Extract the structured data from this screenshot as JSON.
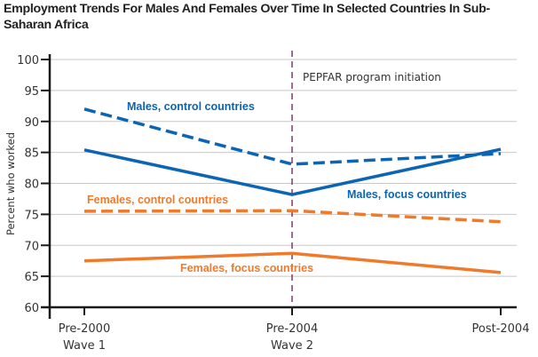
{
  "chart_data": {
    "type": "line",
    "title": "Employment Trends For Males And Females Over Time In Selected Countries In Sub-Saharan Africa",
    "xlabel": "",
    "ylabel": "Percent who worked",
    "ylim": [
      60,
      100
    ],
    "yticks": [
      60,
      65,
      70,
      75,
      80,
      85,
      90,
      95,
      100
    ],
    "ytick_labels": [
      "60",
      "65",
      "70",
      "75",
      "80",
      "85",
      "90",
      "95",
      "100"
    ],
    "grid": true,
    "categories": [
      "Pre-2000",
      "Pre-2004",
      "Post-2004"
    ],
    "category_sublabels": [
      "Wave 1",
      "Wave 2",
      ""
    ],
    "series": [
      {
        "name": "Males, control countries",
        "color": "#0b64b4",
        "dashed": true,
        "values": [
          92.0,
          83.1,
          84.8
        ]
      },
      {
        "name": "Males, focus countries",
        "color": "#0b64b4",
        "dashed": false,
        "values": [
          85.4,
          78.2,
          85.5
        ]
      },
      {
        "name": "Females, control countries",
        "color": "#f07a2a",
        "dashed": true,
        "values": [
          75.5,
          75.6,
          73.8
        ]
      },
      {
        "name": "Females, focus countries",
        "color": "#f07a2a",
        "dashed": false,
        "values": [
          67.5,
          68.7,
          65.6
        ]
      }
    ],
    "annotations": [
      {
        "text": "PEPFAR program initiation",
        "at_category": "Pre-2004",
        "type": "vertical-dashed-line",
        "color": "#6b1a5a"
      }
    ]
  }
}
